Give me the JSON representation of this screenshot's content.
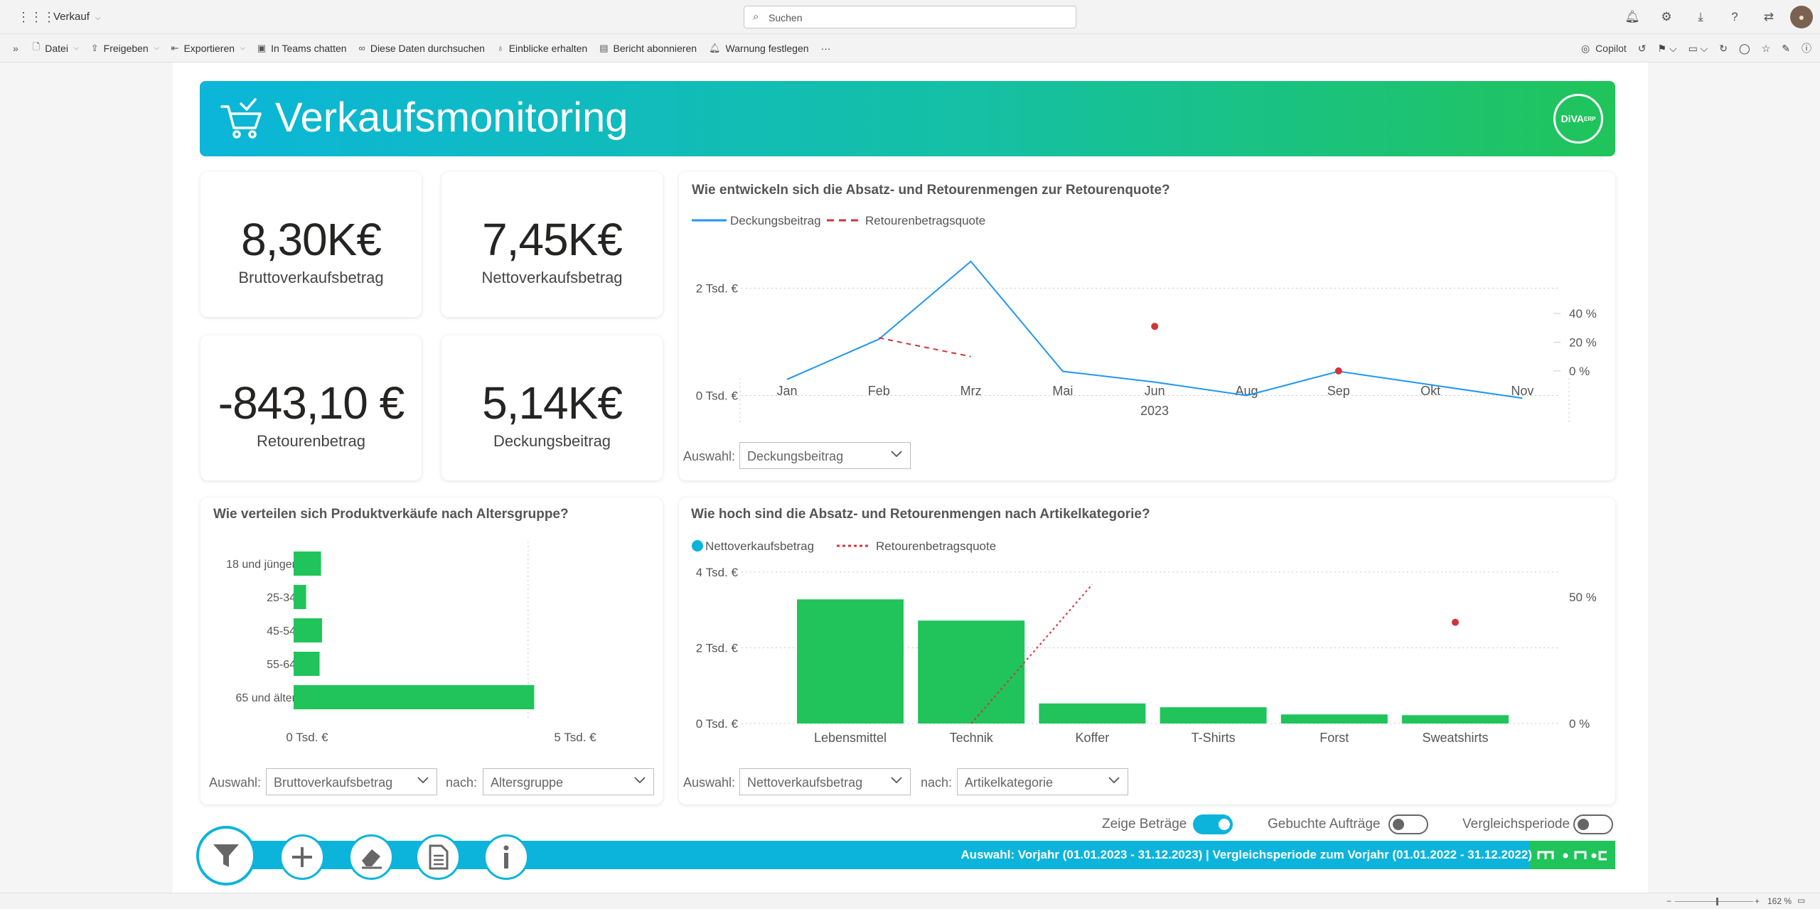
{
  "topbar": {
    "app_title": "Verkauf",
    "search_placeholder": "Suchen"
  },
  "toolbar": {
    "items": [
      "Datei",
      "Freigeben",
      "Exportieren",
      "In Teams chatten",
      "Diese Daten durchsuchen",
      "Einblicke erhalten",
      "Bericht abonnieren",
      "Warnung festlegen"
    ],
    "more": "···",
    "copilot": "Copilot"
  },
  "report": {
    "title": "Verkaufsmonitoring",
    "logo_text": "DiVA",
    "logo_sup": "ERP"
  },
  "kpis": [
    {
      "value": "8,30K€",
      "label": "Bruttoverkaufsbetrag"
    },
    {
      "value": "7,45K€",
      "label": "Nettoverkaufsbetrag"
    },
    {
      "value": "-843,10 €",
      "label": "Retourenbetrag"
    },
    {
      "value": "5,14K€",
      "label": "Deckungsbeitrag"
    }
  ],
  "charts": {
    "line_title": "Wie entwickeln sich die Absatz- und Retourenmengen zur Retourenquote?",
    "line_legend": [
      "Deckungsbeitrag",
      "Retourenbetragsquote"
    ],
    "line_year": "2023",
    "line_y_ticks": [
      "2 Tsd. €",
      "0 Tsd. €"
    ],
    "line_y2_ticks": [
      "40 %",
      "20 %",
      "0 %"
    ],
    "line_select_label": "Auswahl:",
    "line_select_value": "Deckungsbeitrag",
    "age_title": "Wie verteilen sich Produktverkäufe nach Altersgruppe?",
    "age_x_ticks": [
      "0 Tsd. €",
      "5 Tsd. €"
    ],
    "age_select_label": "Auswahl:",
    "age_select_value": "Bruttoverkaufsbetrag",
    "age_by_label": "nach:",
    "age_by_value": "Altersgruppe",
    "cat_title": "Wie hoch sind die Absatz- und Retourenmengen nach Artikelkategorie?",
    "cat_legend": [
      "Nettoverkaufsbetrag",
      "Retourenbetragsquote"
    ],
    "cat_y_ticks": [
      "4 Tsd. €",
      "2 Tsd. €",
      "0 Tsd. €"
    ],
    "cat_y2_ticks": [
      "50 %",
      "0 %"
    ],
    "cat_select_label": "Auswahl:",
    "cat_select_value": "Nettoverkaufsbetrag",
    "cat_by_label": "nach:",
    "cat_by_value": "Artikelkategorie"
  },
  "chart_data": [
    {
      "type": "line",
      "x": [
        "Jan",
        "Feb",
        "Mrz",
        "Mai",
        "Jun",
        "Aug",
        "Sep",
        "Okt",
        "Nov"
      ],
      "series": [
        {
          "name": "Deckungsbeitrag",
          "values": [
            300,
            1050,
            2500,
            450,
            250,
            0,
            450,
            200,
            -50
          ]
        },
        {
          "name": "Retourenbetragsquote",
          "values": [
            null,
            23,
            10,
            null,
            31,
            null,
            0,
            null,
            null
          ]
        }
      ],
      "ylim": [
        -1000,
        3000
      ],
      "y2lim": [
        -5,
        42
      ]
    },
    {
      "type": "bar",
      "orientation": "horizontal",
      "categories": [
        "18 und jünger",
        "25-34",
        "45-54",
        "55-64",
        "65 und älter"
      ],
      "values": [
        570,
        260,
        590,
        540,
        5000
      ],
      "xlim": [
        0,
        5500
      ]
    },
    {
      "type": "bar",
      "categories": [
        "Lebensmittel",
        "Technik",
        "Koffer",
        "T-Shirts",
        "Forst",
        "Sweatshirts"
      ],
      "series": [
        {
          "name": "Nettoverkaufsbetrag",
          "values": [
            3280,
            2720,
            530,
            430,
            240,
            220
          ]
        },
        {
          "name": "Retourenbetragsquote",
          "values": [
            null,
            0,
            55,
            null,
            null,
            40
          ]
        }
      ],
      "ylim": [
        0,
        4000
      ],
      "y2lim": [
        0,
        50
      ]
    }
  ],
  "toggles": [
    {
      "label": "Zeige Beträge",
      "on": true
    },
    {
      "label": "Gebuchte Aufträge",
      "on": false
    },
    {
      "label": "Vergleichsperiode",
      "on": false
    }
  ],
  "footer": {
    "text": "Auswahl: Vorjahr (01.01.2023 - 31.12.2023) | Vergleichsperiode zum Vorjahr (01.01.2022 - 31.12.2022)"
  },
  "statusbar": {
    "zoom": "162 %"
  },
  "colors": {
    "teal": "#0cb4dc",
    "green": "#20c45a",
    "line_blue": "#2196f3",
    "red": "#d13438"
  }
}
